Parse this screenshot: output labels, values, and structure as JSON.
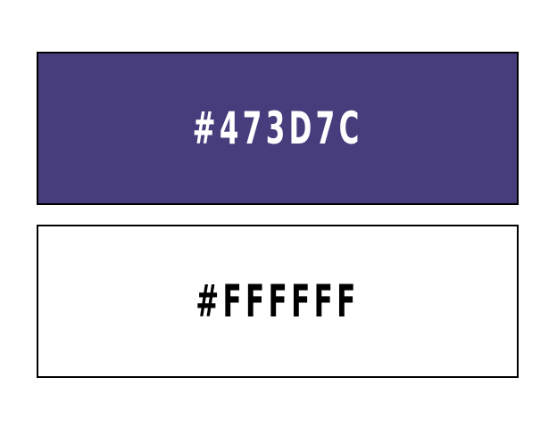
{
  "swatches": [
    {
      "hex_label": "#473D7C",
      "background": "#473D7C",
      "text_color": "#FFFFFF"
    },
    {
      "hex_label": "#FFFFFF",
      "background": "#FFFFFF",
      "text_color": "#000000"
    }
  ]
}
